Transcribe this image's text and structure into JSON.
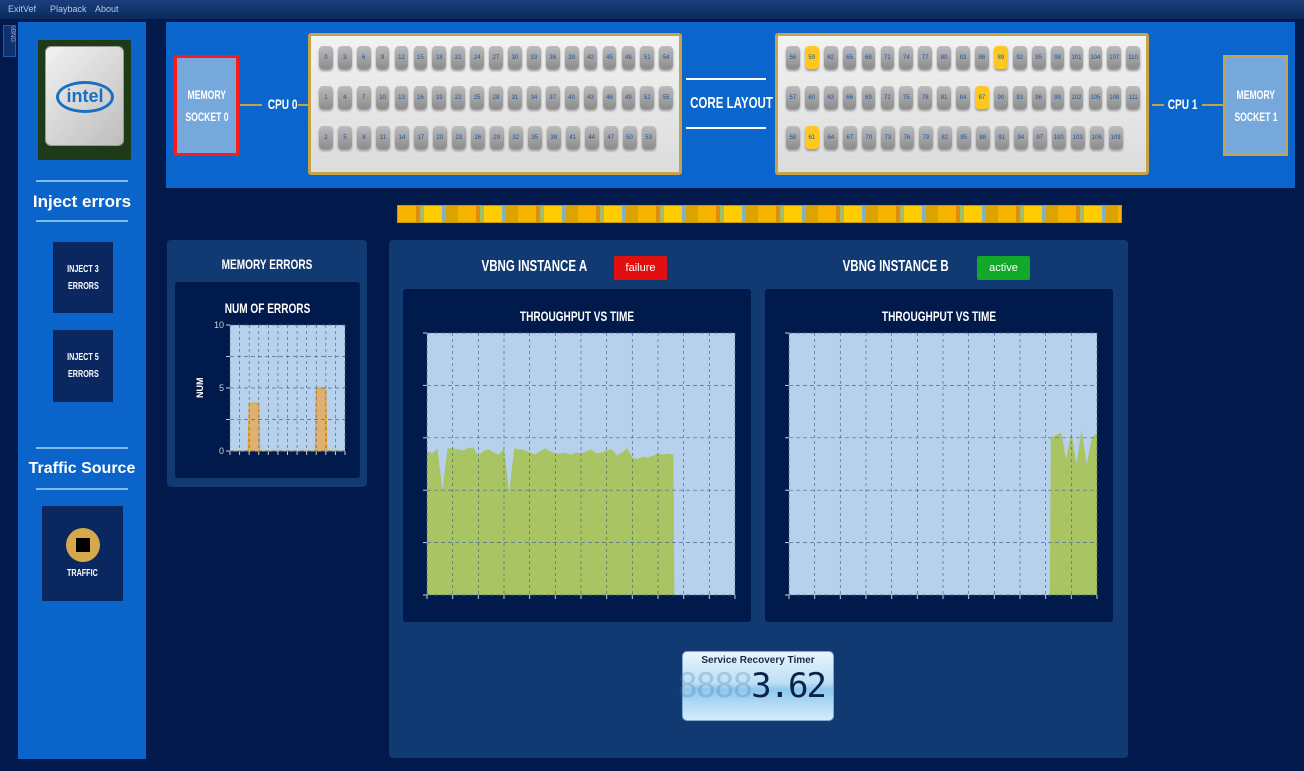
{
  "menu": [
    "ExitVef",
    "Playback",
    "About"
  ],
  "side_tab": "vBNG",
  "sidebar": {
    "logo_text": "intel",
    "inject_heading": "Inject errors",
    "inject_buttons": [
      {
        "line1": "INJECT 3",
        "line2": "ERRORS"
      },
      {
        "line1": "INJECT 5",
        "line2": "ERRORS"
      }
    ],
    "traffic_heading": "Traffic Source",
    "traffic_button": "TRAFFIC",
    "traffic_icon": "stop-icon"
  },
  "topology": {
    "mem0": {
      "line1": "MEMORY",
      "line2": "SOCKET 0",
      "status_color": "#ff1a1a"
    },
    "cpu0_label": "CPU 0",
    "core_layout_label": "CORE LAYOUT",
    "cpu1_label": "CPU 1",
    "mem1": {
      "line1": "MEMORY",
      "line2": "SOCKET 1",
      "status_color": "#c7a247"
    },
    "cpu0_rows": [
      [
        0,
        3,
        6,
        9,
        12,
        15,
        18,
        21,
        24,
        27,
        30,
        33,
        36,
        39,
        42,
        45,
        48,
        51,
        54
      ],
      [
        1,
        4,
        7,
        10,
        13,
        16,
        19,
        22,
        25,
        28,
        31,
        34,
        37,
        40,
        43,
        46,
        49,
        52,
        55
      ],
      [
        2,
        5,
        8,
        11,
        14,
        17,
        20,
        23,
        26,
        29,
        32,
        35,
        38,
        41,
        44,
        47,
        50,
        53
      ]
    ],
    "cpu1_rows": [
      [
        56,
        59,
        62,
        65,
        68,
        71,
        74,
        77,
        80,
        83,
        86,
        89,
        92,
        95,
        98,
        101,
        104,
        107,
        110
      ],
      [
        57,
        60,
        63,
        66,
        69,
        72,
        75,
        78,
        81,
        84,
        87,
        90,
        93,
        96,
        99,
        102,
        105,
        108,
        111
      ],
      [
        58,
        61,
        64,
        67,
        70,
        73,
        76,
        79,
        82,
        85,
        88,
        91,
        94,
        97,
        100,
        103,
        106,
        109
      ]
    ],
    "cpu1_active_cores": [
      59,
      89,
      87,
      61
    ],
    "active_core_color": "#ffc820"
  },
  "memory_errors": {
    "panel_title": "MEMORY ERRORS",
    "chart_data": {
      "type": "area",
      "title": "NUM OF ERRORS",
      "ylabel": "NUM",
      "ylim": [
        0,
        10
      ],
      "yticks": [
        "0",
        "5",
        "10"
      ],
      "x": [
        0,
        1,
        2,
        3,
        4,
        5,
        6,
        7,
        8,
        9,
        10,
        11,
        12
      ],
      "values": [
        0,
        0,
        3.8,
        3.8,
        0,
        0,
        0,
        0,
        0,
        5,
        5,
        0,
        0
      ],
      "color": "#e0b070"
    }
  },
  "instances": [
    {
      "title": "VBNG INSTANCE A",
      "status": "failure",
      "status_color": "#e01010",
      "chart_data": {
        "type": "area",
        "title": "THROUGHPUT VS TIME",
        "xlim": [
          0,
          60
        ],
        "ylim": [
          0,
          5
        ],
        "grid": true,
        "color": "#a9c462",
        "values": [
          2.75,
          2.7,
          2.8,
          2.0,
          2.8,
          2.8,
          2.78,
          2.76,
          2.8,
          2.82,
          2.65,
          2.75,
          2.78,
          2.72,
          2.68,
          2.8,
          1.95,
          2.8,
          2.78,
          2.76,
          2.72,
          2.68,
          2.74,
          2.8,
          2.74,
          2.7,
          2.7,
          2.72,
          2.68,
          2.72,
          2.7,
          2.74,
          2.78,
          2.7,
          2.72,
          2.76,
          2.78,
          2.66,
          2.72,
          2.8,
          2.62,
          2.6,
          2.64,
          2.62,
          2.66,
          2.7,
          2.68,
          2.7,
          2.68,
          0,
          0,
          0,
          0,
          0,
          0,
          0,
          0,
          0,
          0,
          0,
          0
        ]
      }
    },
    {
      "title": "VBNG INSTANCE B",
      "status": "active",
      "status_color": "#12a82a",
      "chart_data": {
        "type": "area",
        "title": "THROUGHPUT VS TIME",
        "xlim": [
          0,
          60
        ],
        "ylim": [
          0,
          5
        ],
        "grid": true,
        "color": "#a9c462",
        "values": [
          0,
          0,
          0,
          0,
          0,
          0,
          0,
          0,
          0,
          0,
          0,
          0,
          0,
          0,
          0,
          0,
          0,
          0,
          0,
          0,
          0,
          0,
          0,
          0,
          0,
          0,
          0,
          0,
          0,
          0,
          0,
          0,
          0,
          0,
          0,
          0,
          0,
          0,
          0,
          0,
          0,
          0,
          0,
          0,
          0,
          0,
          0,
          0,
          0,
          0,
          0,
          3.0,
          3.05,
          3.1,
          2.6,
          3.1,
          2.5,
          3.15,
          2.5,
          3.0,
          3.1
        ]
      }
    }
  ],
  "timer": {
    "label": "Service Recovery Timer",
    "ghost": "8888",
    "value": "3.62"
  }
}
